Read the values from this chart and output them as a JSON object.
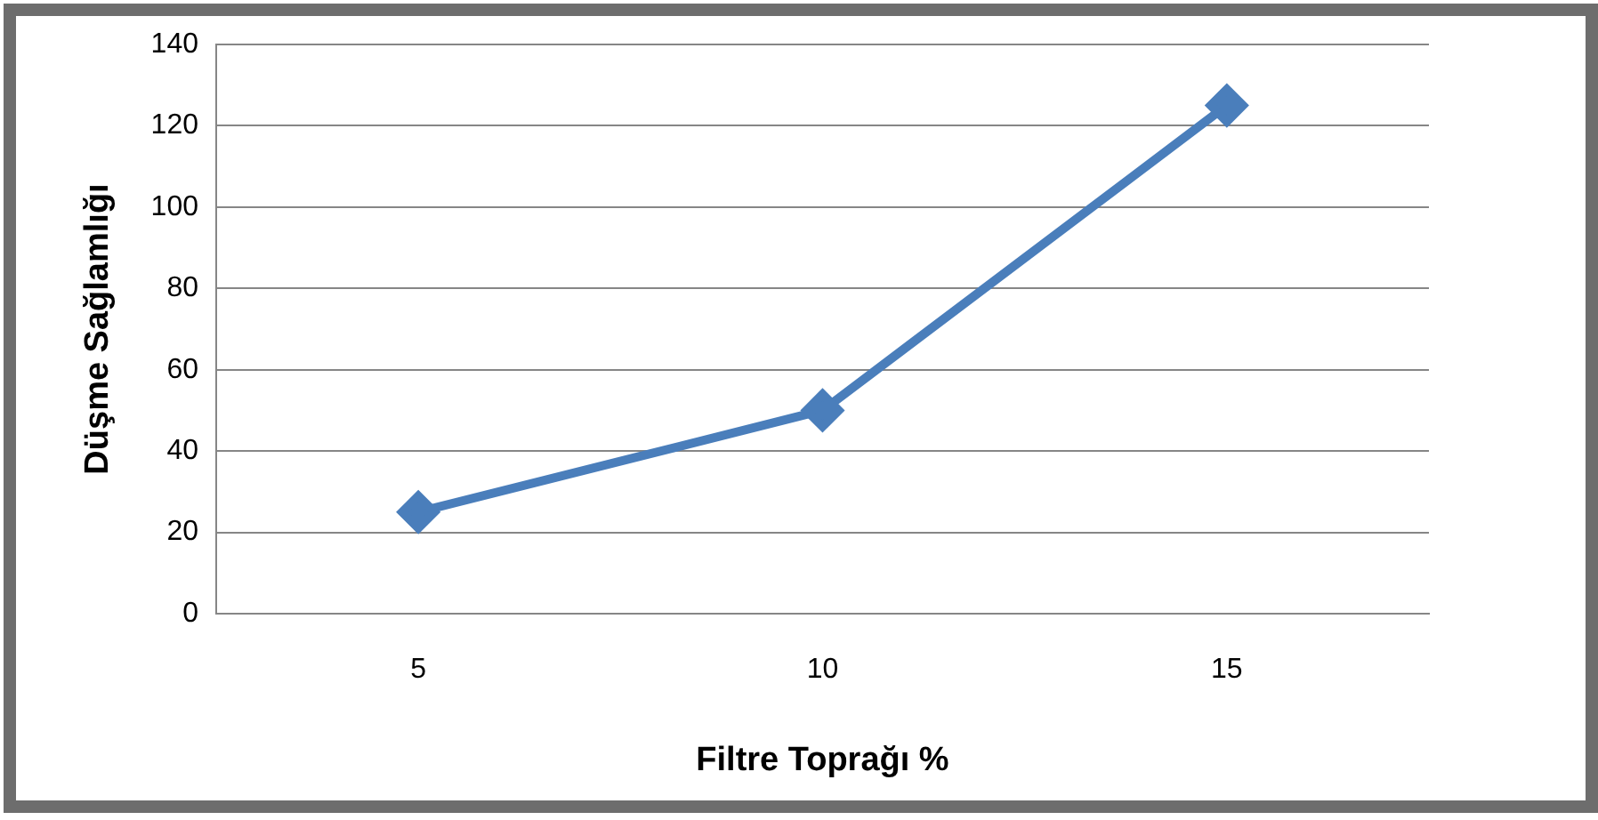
{
  "chart_data": {
    "type": "line",
    "xlabel": "Filtre Toprağı %",
    "ylabel": "Düşme Sağlamlığı",
    "categories": [
      "5",
      "10",
      "15"
    ],
    "series": [
      {
        "color": "#4a7ebb",
        "values": [
          25,
          50,
          125
        ]
      }
    ],
    "ylim": [
      0,
      140
    ],
    "yticks": [
      0,
      20,
      40,
      60,
      80,
      100,
      120,
      140
    ],
    "grid": "y",
    "legend": false,
    "marker": "diamond",
    "line_style": "solid"
  }
}
